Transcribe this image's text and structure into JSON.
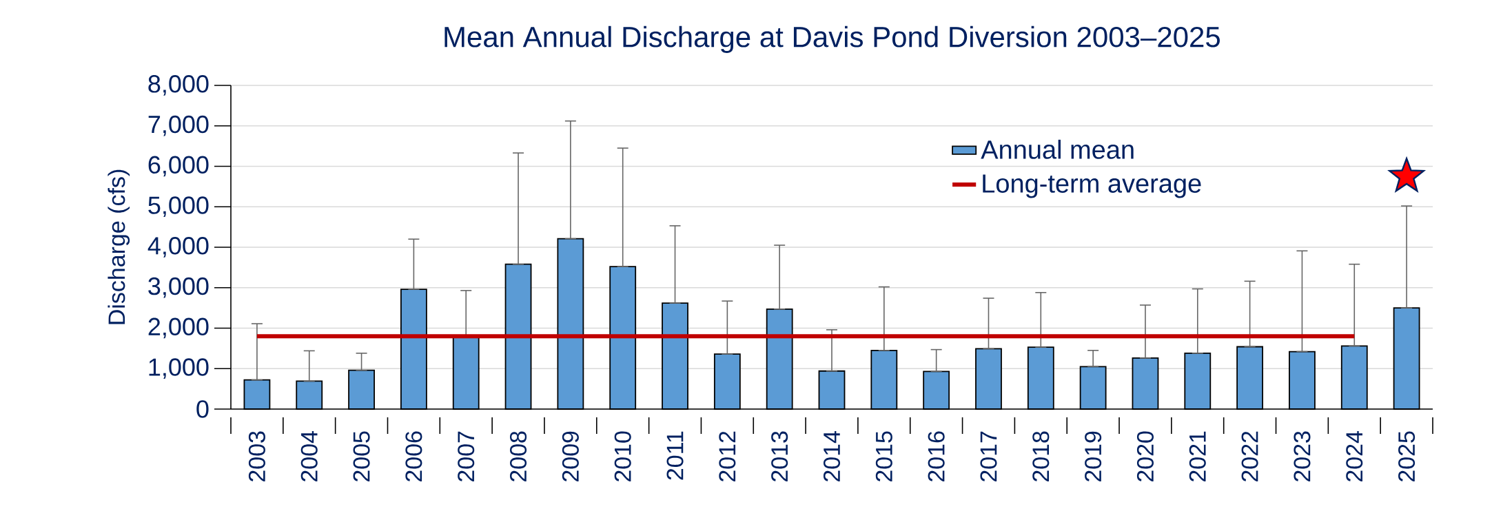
{
  "chart_data": {
    "type": "bar",
    "title": "Mean Annual Discharge at Davis Pond Diversion 2003–2025",
    "ylabel": "Discharge (cfs)",
    "categories": [
      "2003",
      "2004",
      "2005",
      "2006",
      "2007",
      "2008",
      "2009",
      "2010",
      "2011",
      "2012",
      "2013",
      "2014",
      "2015",
      "2016",
      "2017",
      "2018",
      "2019",
      "2020",
      "2021",
      "2022",
      "2023",
      "2024",
      "2025"
    ],
    "series": [
      {
        "name": "Annual mean",
        "color": "#5b9bd5",
        "values": [
          720,
          690,
          960,
          2960,
          1800,
          3580,
          4210,
          3520,
          2620,
          1360,
          2470,
          940,
          1450,
          930,
          1490,
          1530,
          1050,
          1260,
          1380,
          1540,
          1420,
          1560,
          2500
        ],
        "errors": [
          [
            720,
            2110
          ],
          [
            690,
            1440
          ],
          [
            960,
            1380
          ],
          [
            2960,
            4200
          ],
          [
            1800,
            2930
          ],
          [
            3580,
            6330
          ],
          [
            4210,
            7120
          ],
          [
            3520,
            6450
          ],
          [
            2620,
            4530
          ],
          [
            1360,
            2670
          ],
          [
            2470,
            4050
          ],
          [
            940,
            1960
          ],
          [
            1450,
            3020
          ],
          [
            930,
            1470
          ],
          [
            1490,
            2740
          ],
          [
            1530,
            2880
          ],
          [
            1050,
            1450
          ],
          [
            1260,
            2570
          ],
          [
            1380,
            2970
          ],
          [
            1540,
            3160
          ],
          [
            1420,
            3910
          ],
          [
            1560,
            3580
          ],
          [
            2500,
            5020
          ]
        ]
      },
      {
        "name": "Long-term average",
        "type": "line",
        "color": "#c00000",
        "values": [
          1800,
          1800,
          1800,
          1800,
          1800,
          1800,
          1800,
          1800,
          1800,
          1800,
          1800,
          1800,
          1800,
          1800,
          1800,
          1800,
          1800,
          1800,
          1800,
          1800,
          1800,
          1800,
          null
        ]
      },
      {
        "type": "scatter",
        "values": [
          null,
          null,
          null,
          null,
          null,
          null,
          null,
          null,
          null,
          null,
          null,
          null,
          null,
          null,
          null,
          null,
          null,
          null,
          null,
          null,
          null,
          null,
          5750
        ],
        "color": "#ff0000",
        "marker": "star"
      }
    ],
    "ylim": [
      0,
      8000
    ],
    "yticks": [
      0,
      {
        "value": 1000,
        "label": "1,000"
      },
      {
        "value": 2000,
        "label": "2,000"
      },
      {
        "value": 3000,
        "label": "3,000"
      },
      {
        "value": 4000,
        "label": "4,000"
      },
      {
        "value": 5000,
        "label": "5,000"
      },
      {
        "value": 6000,
        "label": "6,000"
      },
      {
        "value": 7000,
        "label": "7,000"
      },
      {
        "value": 8000,
        "label": "8,000"
      }
    ],
    "grid": "y",
    "legend": "top right"
  }
}
